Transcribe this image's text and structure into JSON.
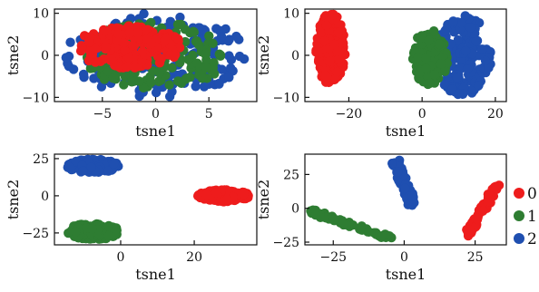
{
  "colors": {
    "0": "#ee1c1c",
    "1": "#2e7d32",
    "2": "#1f4fb0"
  },
  "legend": {
    "entries": [
      "0",
      "1",
      "2"
    ]
  },
  "chart_data": [
    {
      "type": "scatter",
      "xlabel": "tsne1",
      "ylabel": "tsne2",
      "xlim": [
        -9.5,
        9.5
      ],
      "ylim": [
        -11,
        11
      ],
      "xticks": [
        -5,
        0,
        5
      ],
      "yticks": [
        -10,
        0,
        10
      ],
      "tick_labels": {
        "x": [
          "−5",
          "0",
          "5"
        ],
        "y": [
          "−10",
          "0",
          "10"
        ]
      },
      "clusters": [
        {
          "class": "2",
          "shape": "ellipse",
          "cx": 0,
          "cy": 0,
          "rx": 8.5,
          "ry": 10
        },
        {
          "class": "1",
          "shape": "ellipse",
          "cx": 0,
          "cy": 0,
          "rx": 7,
          "ry": 8
        },
        {
          "class": "0",
          "shape": "ellipse",
          "cx": -2.5,
          "cy": 2,
          "rx": 5,
          "ry": 5
        }
      ]
    },
    {
      "type": "scatter",
      "xlabel": "tsne1",
      "ylabel": "tsne2",
      "xlim": [
        -32,
        23
      ],
      "ylim": [
        -11,
        11
      ],
      "xticks": [
        -20,
        0,
        20
      ],
      "yticks": [
        -10,
        0,
        10
      ],
      "tick_labels": {
        "x": [
          "−20",
          "0",
          "20"
        ],
        "y": [
          "−10",
          "0",
          "10"
        ]
      },
      "clusters": [
        {
          "class": "0",
          "shape": "ellipse",
          "cx": -25,
          "cy": 1.5,
          "rx": 4,
          "ry": 8.5
        },
        {
          "class": "2",
          "shape": "ellipse",
          "cx": 11,
          "cy": 0,
          "rx": 8,
          "ry": 9.5
        },
        {
          "class": "1",
          "shape": "ellipse",
          "cx": 2,
          "cy": -0.5,
          "rx": 5,
          "ry": 6.5
        }
      ]
    },
    {
      "type": "scatter",
      "xlabel": "tsne1",
      "ylabel": "tsne2",
      "xlim": [
        -18,
        37
      ],
      "ylim": [
        -33,
        28
      ],
      "xticks": [
        0,
        20
      ],
      "yticks": [
        -25,
        0,
        25
      ],
      "tick_labels": {
        "x": [
          "0",
          "20"
        ],
        "y": [
          "−25",
          "0",
          "25"
        ]
      },
      "clusters": [
        {
          "class": "2",
          "shape": "ellipse",
          "cx": -7.5,
          "cy": 20,
          "rx": 7,
          "ry": 4.5
        },
        {
          "class": "1",
          "shape": "ellipse",
          "cx": -7.5,
          "cy": -24,
          "rx": 7,
          "ry": 5.5
        },
        {
          "class": "0",
          "shape": "ellipse",
          "cx": 28,
          "cy": 0,
          "rx": 7,
          "ry": 4
        }
      ]
    },
    {
      "type": "scatter",
      "xlabel": "tsne1",
      "ylabel": "tsne2",
      "xlim": [
        -35,
        36
      ],
      "ylim": [
        -27,
        40
      ],
      "xticks": [
        -25,
        0,
        25
      ],
      "yticks": [
        -25,
        0,
        25
      ],
      "tick_labels": {
        "x": [
          "−25",
          "0",
          "25"
        ],
        "y": [
          "−25",
          "0",
          "25"
        ]
      },
      "clusters": [
        {
          "class": "2",
          "shape": "line",
          "from": [
            -3,
            34
          ],
          "to": [
            3,
            2
          ],
          "width": 3
        },
        {
          "class": "1",
          "shape": "line",
          "from": [
            -33,
            -2
          ],
          "to": [
            -5,
            -22
          ],
          "width": 3
        },
        {
          "class": "0",
          "shape": "line",
          "from": [
            33,
            18
          ],
          "to": [
            22,
            -21
          ],
          "width": 2.5
        }
      ]
    }
  ]
}
